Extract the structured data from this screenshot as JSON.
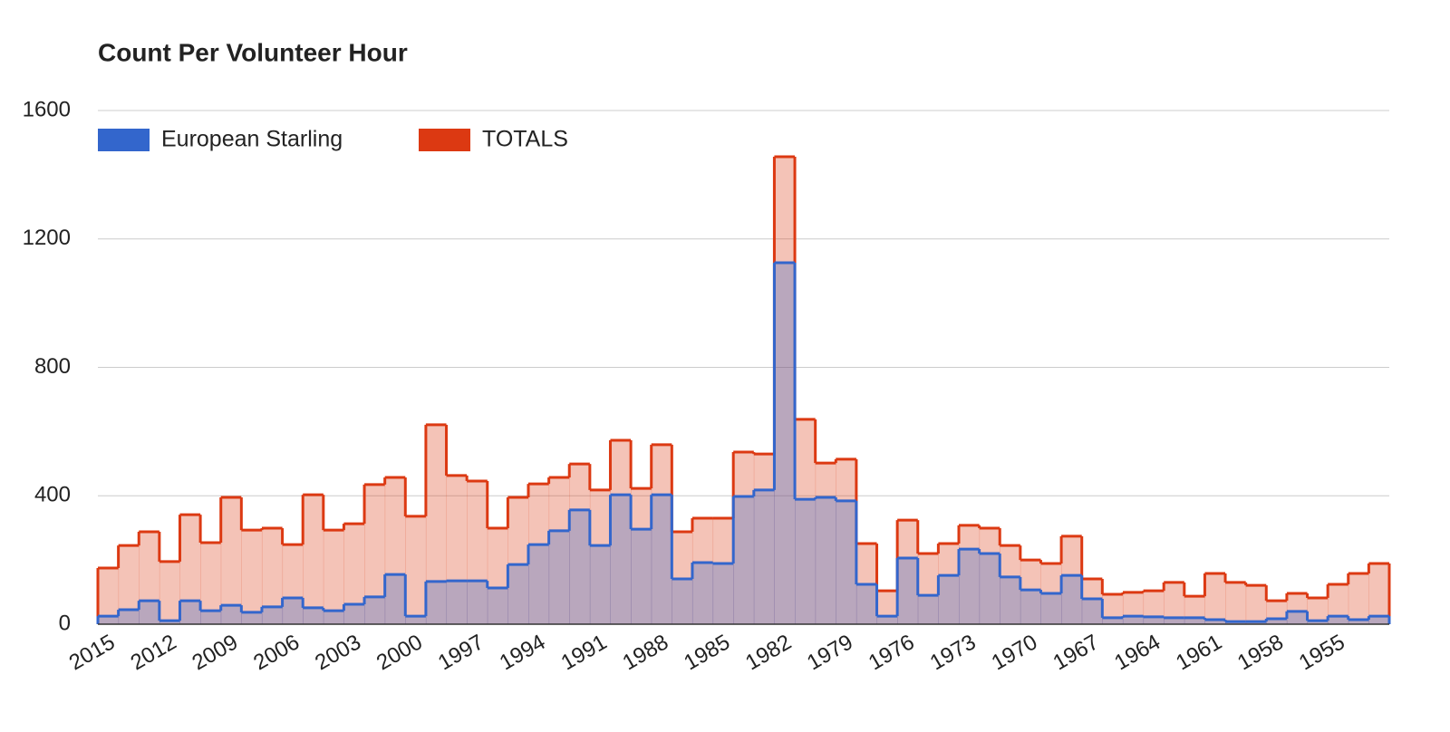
{
  "chart_data": {
    "type": "stepped-area",
    "title": "Count Per Volunteer Hour",
    "categories": [
      "2015",
      null,
      null,
      "2012",
      null,
      null,
      "2009",
      null,
      null,
      "2006",
      null,
      null,
      "2003",
      null,
      null,
      "2000",
      null,
      null,
      "1997",
      null,
      null,
      "1994",
      null,
      null,
      "1991",
      null,
      null,
      "1988",
      null,
      null,
      "1985",
      null,
      null,
      "1982",
      null,
      null,
      "1979",
      null,
      null,
      "1976",
      null,
      null,
      "1973",
      null,
      null,
      "1970",
      null,
      null,
      "1967",
      null,
      null,
      "1964",
      null,
      null,
      "1961",
      null,
      null,
      "1958",
      null,
      null,
      "1955",
      null,
      null
    ],
    "series": [
      {
        "name": "European Starling",
        "color": "#3366cc",
        "values": [
          25,
          45,
          73,
          11,
          73,
          42,
          59,
          37,
          54,
          82,
          51,
          42,
          62,
          85,
          155,
          25,
          133,
          135,
          135,
          113,
          186,
          248,
          291,
          356,
          245,
          403,
          296,
          403,
          141,
          192,
          189,
          398,
          418,
          1126,
          389,
          395,
          384,
          124,
          25,
          206,
          90,
          152,
          234,
          220,
          147,
          107,
          96,
          152,
          79,
          20,
          25,
          23,
          20,
          20,
          14,
          8,
          8,
          17,
          40,
          11,
          25,
          14,
          25
        ]
      },
      {
        "name": "TOTALS",
        "color": "#dc3912",
        "values": [
          175,
          245,
          288,
          195,
          341,
          254,
          395,
          293,
          299,
          248,
          403,
          293,
          313,
          435,
          457,
          336,
          621,
          463,
          446,
          299,
          395,
          437,
          457,
          499,
          418,
          573,
          423,
          559,
          288,
          330,
          330,
          536,
          530,
          1456,
          638,
          502,
          514,
          251,
          104,
          324,
          220,
          251,
          308,
          299,
          245,
          200,
          189,
          274,
          141,
          93,
          99,
          104,
          130,
          87,
          158,
          130,
          121,
          73,
          96,
          82,
          124,
          158,
          189
        ]
      }
    ],
    "ylim": [
      0,
      1600
    ],
    "yticks": [
      0,
      400,
      800,
      1200,
      1600
    ],
    "grid": true,
    "legend": "top-left"
  }
}
